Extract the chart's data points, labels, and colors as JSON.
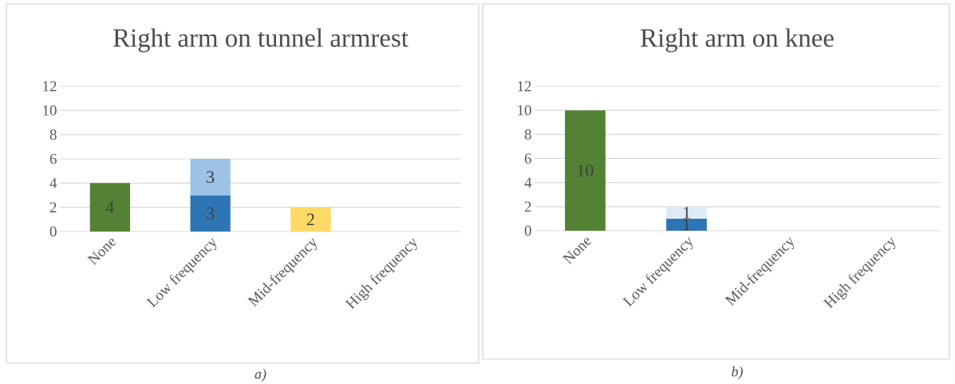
{
  "chart_data": [
    {
      "type": "bar",
      "title": "Right arm on tunnel armrest",
      "categories": [
        "None",
        "Low frequency",
        "Mid-frequency",
        "High frequency"
      ],
      "series": [
        {
          "values": [
            4,
            3,
            2,
            null
          ],
          "colors": [
            "#548235",
            "#2e75b6",
            "#ffd966",
            null
          ]
        },
        {
          "values": [
            null,
            3,
            null,
            null
          ],
          "colors": [
            null,
            "#9dc3e6",
            null,
            null
          ]
        }
      ],
      "stacked": true,
      "data_labels": true,
      "ylim": [
        0,
        12
      ],
      "yticks": [
        0,
        2,
        4,
        6,
        8,
        10,
        12
      ],
      "grid": "y",
      "annotations": [
        "a)"
      ]
    },
    {
      "type": "bar",
      "title": "Right arm on knee",
      "categories": [
        "None",
        "Low frequency",
        "Mid-frequency",
        "High frequency"
      ],
      "series": [
        {
          "values": [
            10,
            1,
            null,
            null
          ],
          "colors": [
            "#548235",
            "#2e75b6",
            null,
            null
          ]
        },
        {
          "values": [
            null,
            1,
            null,
            null
          ],
          "colors": [
            null,
            "#deebf7",
            null,
            null
          ]
        }
      ],
      "stacked": true,
      "data_labels": true,
      "ylim": [
        0,
        12
      ],
      "yticks": [
        0,
        2,
        4,
        6,
        8,
        10,
        12
      ],
      "grid": "y",
      "annotations": [
        "b)"
      ]
    }
  ]
}
